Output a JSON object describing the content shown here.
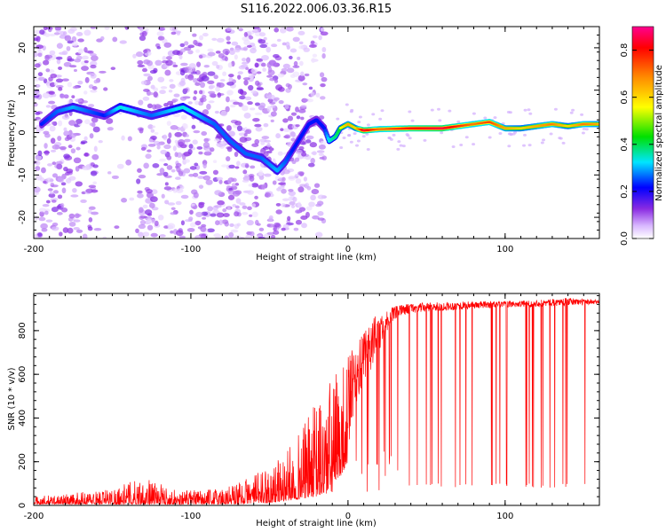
{
  "title": "S116.2022.006.03.36.R15",
  "chart_data": [
    {
      "type": "heatmap",
      "xlabel": "Height of straight line (km)",
      "ylabel": "Frequency (Hz)",
      "xlim": [
        -200,
        160
      ],
      "ylim": [
        -25,
        25
      ],
      "xticks": [
        "-200",
        "-100",
        "0",
        "100"
      ],
      "yticks": [
        "20",
        "10",
        "0",
        "-10",
        "-20"
      ],
      "colorbar": {
        "label": "Normalized spectral amplitude",
        "ticks": [
          "0.0",
          "0.2",
          "0.4",
          "0.6",
          "0.8"
        ],
        "range": [
          0,
          0.9
        ],
        "colors": [
          "#ffffff",
          "#b46bff",
          "#5a00e0",
          "#0000ff",
          "#00e5ff",
          "#00e000",
          "#ffff00",
          "#ff8c00",
          "#ff0000",
          "#ff00a0"
        ]
      },
      "ridge": {
        "x": [
          -195,
          -185,
          -175,
          -165,
          -155,
          -145,
          -135,
          -125,
          -115,
          -105,
          -95,
          -85,
          -75,
          -65,
          -55,
          -45,
          -40,
          -35,
          -30,
          -25,
          -20,
          -15,
          -12,
          -8,
          -5,
          0,
          5,
          10,
          20,
          40,
          60,
          80,
          90,
          100,
          110,
          120,
          130,
          140,
          150,
          160
        ],
        "y": [
          2,
          5,
          6,
          5,
          4,
          6,
          5,
          4,
          5,
          6,
          4,
          2,
          -2,
          -5,
          -6,
          -9,
          -7,
          -4,
          -1,
          2,
          3,
          1,
          -2,
          -1,
          1,
          2,
          1,
          0.5,
          0.8,
          1,
          1,
          2,
          2.5,
          1,
          1,
          1.5,
          2,
          1.5,
          2,
          2
        ],
        "amplitude": [
          0.3,
          0.35,
          0.4,
          0.35,
          0.3,
          0.45,
          0.4,
          0.35,
          0.4,
          0.45,
          0.4,
          0.35,
          0.35,
          0.35,
          0.35,
          0.4,
          0.35,
          0.3,
          0.3,
          0.3,
          0.3,
          0.3,
          0.45,
          0.5,
          0.55,
          0.65,
          0.6,
          0.85,
          0.7,
          0.8,
          0.85,
          0.7,
          0.75,
          0.65,
          0.6,
          0.65,
          0.7,
          0.6,
          0.7,
          0.65
        ]
      }
    },
    {
      "type": "line",
      "xlabel": "Height of straight line (km)",
      "ylabel": "SNR (10 * v/v)",
      "xlim": [
        -200,
        160
      ],
      "ylim": [
        0,
        970
      ],
      "xticks": [
        "-200",
        "-100",
        "0",
        "100"
      ],
      "yticks": [
        "0",
        "200",
        "400",
        "600",
        "800"
      ],
      "color": "#ff0000",
      "series": [
        {
          "envelope_x": [
            -200,
            -170,
            -150,
            -130,
            -110,
            -90,
            -70,
            -60,
            -50,
            -40,
            -30,
            -20,
            -10,
            0,
            5,
            10,
            15,
            20,
            25,
            30,
            35,
            40,
            60,
            80,
            100,
            120,
            140,
            160
          ],
          "envelope_lo": [
            5,
            5,
            5,
            5,
            5,
            5,
            5,
            10,
            10,
            20,
            30,
            40,
            60,
            200,
            450,
            550,
            620,
            700,
            800,
            850,
            870,
            880,
            890,
            900,
            905,
            910,
            915,
            920
          ],
          "envelope_hi": [
            40,
            60,
            80,
            130,
            70,
            70,
            110,
            140,
            180,
            240,
            350,
            480,
            600,
            700,
            720,
            800,
            860,
            880,
            900,
            910,
            920,
            925,
            930,
            935,
            935,
            940,
            950,
            940
          ],
          "dropout_x_range": [
            35,
            160
          ],
          "dropout_level": 80
        }
      ]
    }
  ]
}
